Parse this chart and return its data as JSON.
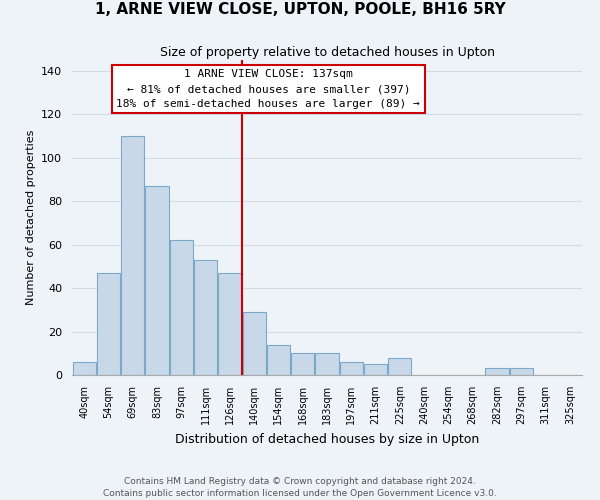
{
  "title": "1, ARNE VIEW CLOSE, UPTON, POOLE, BH16 5RY",
  "subtitle": "Size of property relative to detached houses in Upton",
  "xlabel": "Distribution of detached houses by size in Upton",
  "ylabel": "Number of detached properties",
  "bar_labels": [
    "40sqm",
    "54sqm",
    "69sqm",
    "83sqm",
    "97sqm",
    "111sqm",
    "126sqm",
    "140sqm",
    "154sqm",
    "168sqm",
    "183sqm",
    "197sqm",
    "211sqm",
    "225sqm",
    "240sqm",
    "254sqm",
    "268sqm",
    "282sqm",
    "297sqm",
    "311sqm",
    "325sqm"
  ],
  "bar_values": [
    6,
    47,
    110,
    87,
    62,
    53,
    47,
    29,
    14,
    10,
    10,
    6,
    5,
    8,
    0,
    0,
    0,
    3,
    3,
    0,
    0
  ],
  "bar_color": "#c8d8e8",
  "bar_edge_color": "#7aaac8",
  "grid_color": "#d0dce8",
  "background_color": "#eef3f8",
  "vline_x_index": 7,
  "vline_color": "#cc0000",
  "annotation_line1": "1 ARNE VIEW CLOSE: 137sqm",
  "annotation_line2": "← 81% of detached houses are smaller (397)",
  "annotation_line3": "18% of semi-detached houses are larger (89) →",
  "annotation_box_color": "#ffffff",
  "annotation_border_color": "#cc0000",
  "footer1": "Contains HM Land Registry data © Crown copyright and database right 2024.",
  "footer2": "Contains public sector information licensed under the Open Government Licence v3.0.",
  "ylim": [
    0,
    145
  ],
  "yticks": [
    0,
    20,
    40,
    60,
    80,
    100,
    120,
    140
  ],
  "title_fontsize": 11,
  "subtitle_fontsize": 9,
  "xlabel_fontsize": 9,
  "ylabel_fontsize": 8,
  "xtick_fontsize": 7,
  "ytick_fontsize": 8,
  "annotation_fontsize": 8,
  "footer_fontsize": 6.5
}
